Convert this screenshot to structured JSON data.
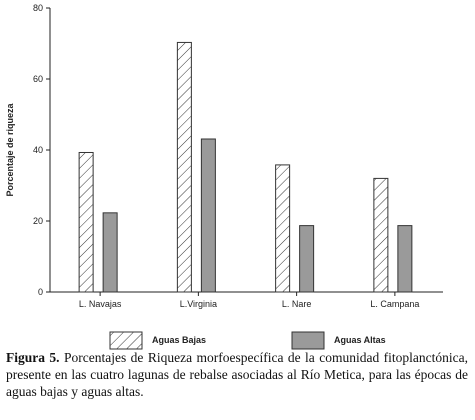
{
  "chart_data": {
    "type": "bar",
    "ylabel": "Porcentaje de riqueza",
    "xlabel": "",
    "ylim": [
      0,
      80
    ],
    "yticks": [
      0,
      20,
      40,
      60,
      80
    ],
    "categories": [
      "L. Navajas",
      "L.Virginia",
      "L. Nare",
      "L. Campana"
    ],
    "series": [
      {
        "name": "Aguas Bajas",
        "values": [
          39.3,
          70.3,
          35.8,
          32.0
        ],
        "fill": "hatch"
      },
      {
        "name": "Aguas Altas",
        "values": [
          22.3,
          43.1,
          18.7,
          18.7
        ],
        "fill": "#9a9a9a"
      }
    ],
    "grid": false,
    "legend": "bottom"
  },
  "caption": {
    "label": "Figura 5.",
    "text": " Porcentajes de Riqueza morfoespecífica de la comunidad fitoplanctónica, presente en las cuatro lagunas de rebalse asociadas al Río Metica, para las épocas de aguas bajas y aguas altas."
  }
}
